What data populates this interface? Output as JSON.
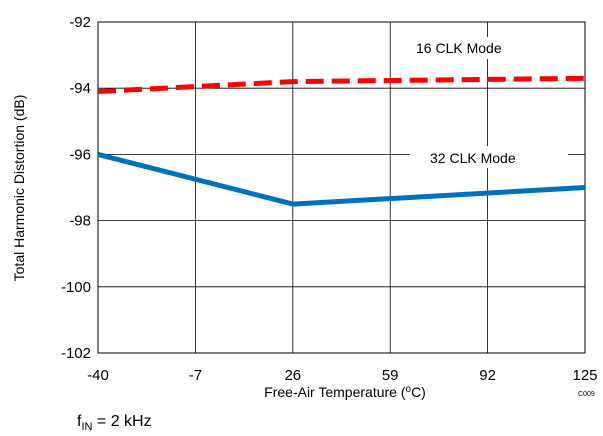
{
  "chart_data": {
    "type": "line",
    "x": [
      -40,
      26,
      125
    ],
    "xticks": [
      "-40",
      "-7",
      "26",
      "59",
      "92",
      "125"
    ],
    "yticks": [
      "-92",
      "-94",
      "-96",
      "-98",
      "-100",
      "-102"
    ],
    "xlim": [
      -40,
      125
    ],
    "ylim": [
      -102,
      -92
    ],
    "grid": true,
    "xlabel_parts": {
      "pre": "Free-Air Temperature (",
      "sup": "o",
      "post": "C)"
    },
    "ylabel": "Total Harmonic Distortion (dB)",
    "code": "C009",
    "series": [
      {
        "name": "16 CLK Mode",
        "x": [
          -40,
          26,
          125
        ],
        "values": [
          -94.1,
          -93.8,
          -93.7
        ],
        "color": "#ff0000",
        "style": "dashed"
      },
      {
        "name": "32 CLK Mode",
        "x": [
          -40,
          26,
          125
        ],
        "values": [
          -96.0,
          -97.5,
          -97.0
        ],
        "color": "#0070c0",
        "style": "solid"
      }
    ]
  },
  "note": {
    "f": "f",
    "sub": "IN",
    "rest": " = 2 kHz"
  }
}
